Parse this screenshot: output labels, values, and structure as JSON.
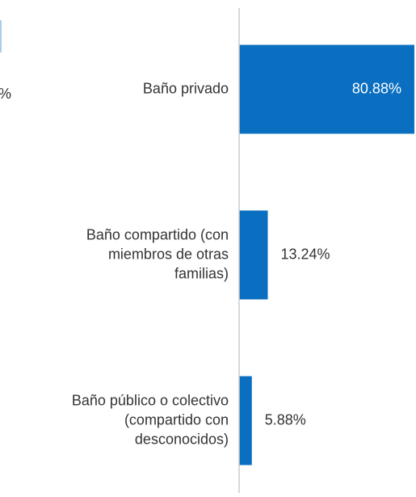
{
  "chart_data": {
    "type": "hbar",
    "cropped_text": "%",
    "categories": [
      [
        "Baño privado"
      ],
      [
        "Baño compartido (con",
        "miembros de otras",
        "familias)"
      ],
      [
        "Baño público o colectivo",
        "(compartido con",
        "desconocidos)"
      ]
    ],
    "values": [
      80.88,
      13.24,
      5.88
    ],
    "value_labels": [
      "80.88%",
      "13.24%",
      "5.88%"
    ],
    "color": "#0b6fc1",
    "xlim": [
      0,
      81
    ]
  }
}
